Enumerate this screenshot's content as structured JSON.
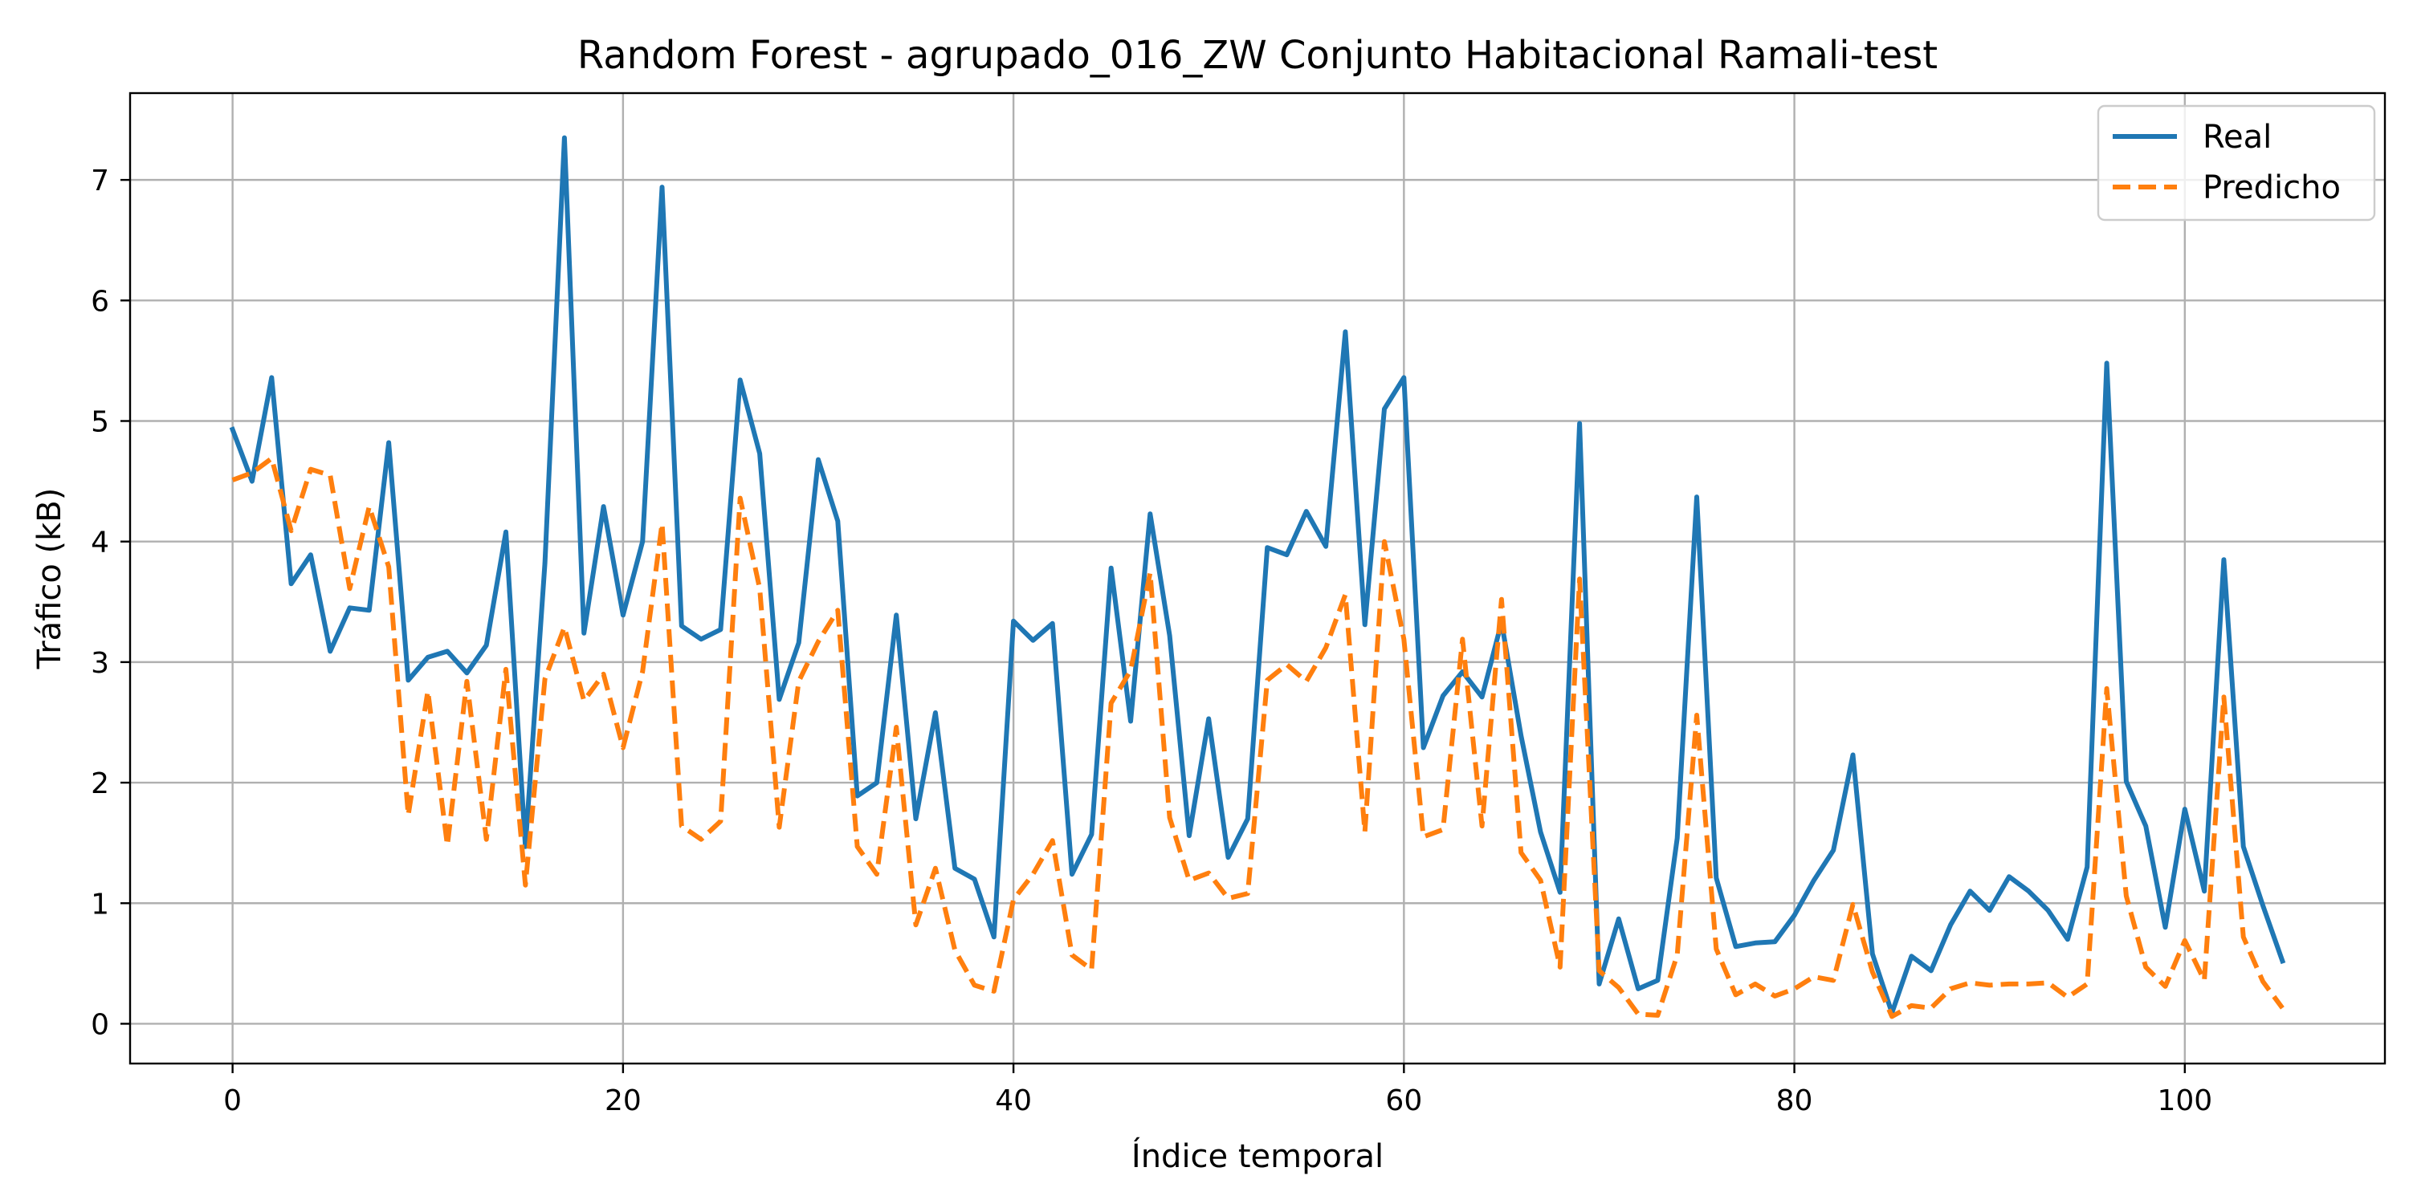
{
  "chart_data": {
    "type": "line",
    "title": "Random Forest - agrupado_016_ZW Conjunto Habitacional Ramali-test",
    "xlabel": "Índice temporal",
    "ylabel": "Tráfico (kB)",
    "xlim": [
      -5.25,
      110.25
    ],
    "ylim": [
      -0.33,
      7.72
    ],
    "xticks": [
      0,
      20,
      40,
      60,
      80,
      100
    ],
    "yticks": [
      0,
      1,
      2,
      3,
      4,
      5,
      6,
      7
    ],
    "grid": true,
    "legend_position": "top-right",
    "series": [
      {
        "name": "Real",
        "color": "#1f77b4",
        "style": "solid",
        "values": [
          4.93,
          4.5,
          5.36,
          3.65,
          3.89,
          3.09,
          3.45,
          3.43,
          4.82,
          2.85,
          3.04,
          3.09,
          2.91,
          3.14,
          4.08,
          1.47,
          3.82,
          7.35,
          3.24,
          4.29,
          3.39,
          4.0,
          6.94,
          3.3,
          3.19,
          3.27,
          5.34,
          4.73,
          2.69,
          3.16,
          4.68,
          4.17,
          1.89,
          2.0,
          3.39,
          1.7,
          2.58,
          1.29,
          1.2,
          0.72,
          3.34,
          3.18,
          3.32,
          1.24,
          1.57,
          3.78,
          2.51,
          4.23,
          3.22,
          1.56,
          2.53,
          1.38,
          1.7,
          3.95,
          3.89,
          4.25,
          3.96,
          5.74,
          3.31,
          5.1,
          5.36,
          2.29,
          2.72,
          2.92,
          2.71,
          3.33,
          2.39,
          1.59,
          1.09,
          4.98,
          0.33,
          0.87,
          0.29,
          0.36,
          1.54,
          4.37,
          1.21,
          0.64,
          0.67,
          0.68,
          0.9,
          1.19,
          1.44,
          2.23,
          0.58,
          0.09,
          0.56,
          0.44,
          0.82,
          1.1,
          0.94,
          1.22,
          1.1,
          0.94,
          0.7,
          1.3,
          5.48,
          2.01,
          1.64,
          0.8,
          1.78,
          1.1,
          3.85,
          1.47,
          0.98,
          0.52
        ]
      },
      {
        "name": "Predicho",
        "color": "#ff7f0e",
        "style": "dashed",
        "values": [
          4.51,
          4.57,
          4.69,
          4.09,
          4.6,
          4.55,
          3.61,
          4.29,
          3.79,
          1.73,
          2.76,
          1.48,
          2.84,
          1.53,
          2.94,
          1.15,
          2.86,
          3.29,
          2.68,
          2.9,
          2.29,
          2.92,
          4.15,
          1.64,
          1.53,
          1.68,
          4.36,
          3.61,
          1.63,
          2.84,
          3.17,
          3.43,
          1.47,
          1.24,
          2.46,
          0.82,
          1.29,
          0.61,
          0.32,
          0.27,
          1.03,
          1.24,
          1.52,
          0.57,
          0.45,
          2.66,
          2.93,
          3.74,
          1.71,
          1.19,
          1.25,
          1.04,
          1.08,
          2.85,
          2.98,
          2.84,
          3.12,
          3.56,
          1.59,
          4.0,
          3.19,
          1.55,
          1.61,
          3.19,
          1.64,
          3.52,
          1.42,
          1.19,
          0.47,
          3.69,
          0.44,
          0.3,
          0.08,
          0.07,
          0.57,
          2.56,
          0.62,
          0.24,
          0.33,
          0.23,
          0.29,
          0.39,
          0.36,
          0.99,
          0.43,
          0.06,
          0.15,
          0.13,
          0.29,
          0.34,
          0.32,
          0.33,
          0.33,
          0.34,
          0.22,
          0.33,
          2.78,
          1.06,
          0.47,
          0.31,
          0.69,
          0.36,
          2.71,
          0.72,
          0.35,
          0.13
        ]
      }
    ]
  }
}
